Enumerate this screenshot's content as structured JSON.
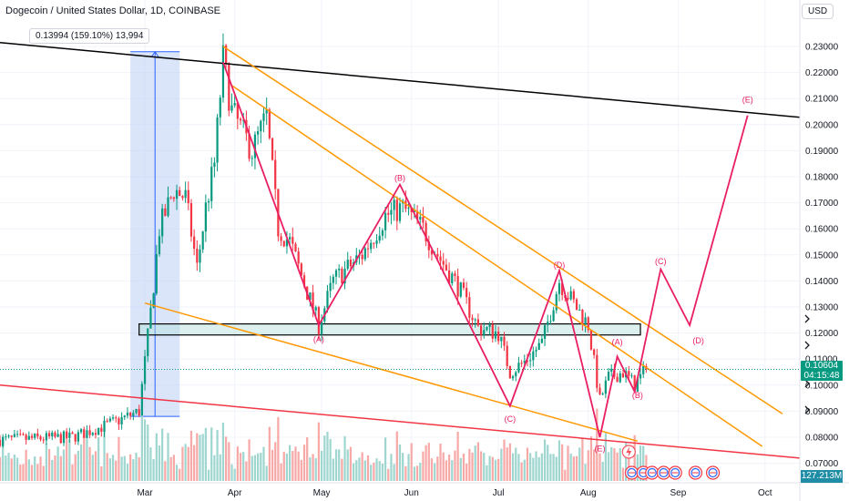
{
  "header": {
    "title": "Dogecoin / United States Dollar, 1D, COINBASE",
    "currency": "USD"
  },
  "measure": {
    "label": "0.13994 (159.10%) 13,994"
  },
  "price_tag": {
    "price": "0.10604",
    "countdown": "04:15:48"
  },
  "volume_tag": {
    "value": "127.213M"
  },
  "colors": {
    "up": "#089981",
    "down": "#f23645",
    "volume_up": "#9fd6cf",
    "volume_down": "#f7a9a7",
    "channel": "#ff9800",
    "resistance": "#000000",
    "support": "#f23645",
    "wave": "#e91e63",
    "zone_fill": "#b2dfdb",
    "measure_fill": "#bbcff5"
  },
  "chart_data": {
    "type": "candlestick",
    "symbol": "Dogecoin / United States Dollar",
    "interval": "1D",
    "exchange": "COINBASE",
    "ylim": [
      0.0675,
      0.2365
    ],
    "y_ticks": [
      "0.23000",
      "0.22000",
      "0.21000",
      "0.20000",
      "0.19000",
      "0.18000",
      "0.17000",
      "0.16000",
      "0.15000",
      "0.14000",
      "0.13000",
      "0.12000",
      "0.11000",
      "0.10000",
      "0.09000",
      "0.08000",
      "0.07000"
    ],
    "x_ticks": [
      {
        "label": "Mar",
        "date": "2024-03-01"
      },
      {
        "label": "Apr",
        "date": "2024-04-01"
      },
      {
        "label": "May",
        "date": "2024-05-01"
      },
      {
        "label": "Jun",
        "date": "2024-06-01"
      },
      {
        "label": "Jul",
        "date": "2024-07-01"
      },
      {
        "label": "Aug",
        "date": "2024-08-01"
      },
      {
        "label": "Sep",
        "date": "2024-09-01"
      },
      {
        "label": "Oct",
        "date": "2024-10-01"
      }
    ],
    "xlim": [
      "2024-01-11",
      "2024-10-13"
    ],
    "last_price": 0.10604,
    "price_path": [
      {
        "date": "2024-01-11",
        "price": 0.079
      },
      {
        "date": "2024-02-05",
        "price": 0.08
      },
      {
        "date": "2024-02-20",
        "price": 0.086
      },
      {
        "date": "2024-02-28",
        "price": 0.09
      },
      {
        "date": "2024-03-03",
        "price": 0.128
      },
      {
        "date": "2024-03-06",
        "price": 0.16
      },
      {
        "date": "2024-03-11",
        "price": 0.175
      },
      {
        "date": "2024-03-15",
        "price": 0.172
      },
      {
        "date": "2024-03-19",
        "price": 0.145
      },
      {
        "date": "2024-03-22",
        "price": 0.168
      },
      {
        "date": "2024-03-25",
        "price": 0.185
      },
      {
        "date": "2024-03-28",
        "price": 0.225
      },
      {
        "date": "2024-03-31",
        "price": 0.205
      },
      {
        "date": "2024-04-07",
        "price": 0.19
      },
      {
        "date": "2024-04-12",
        "price": 0.203
      },
      {
        "date": "2024-04-16",
        "price": 0.16
      },
      {
        "date": "2024-04-20",
        "price": 0.155
      },
      {
        "date": "2024-04-30",
        "price": 0.123
      },
      {
        "date": "2024-05-05",
        "price": 0.14
      },
      {
        "date": "2024-05-15",
        "price": 0.15
      },
      {
        "date": "2024-05-23",
        "price": 0.165
      },
      {
        "date": "2024-05-29",
        "price": 0.168
      },
      {
        "date": "2024-06-05",
        "price": 0.16
      },
      {
        "date": "2024-06-10",
        "price": 0.15
      },
      {
        "date": "2024-06-17",
        "price": 0.138
      },
      {
        "date": "2024-06-24",
        "price": 0.122
      },
      {
        "date": "2024-07-01",
        "price": 0.12
      },
      {
        "date": "2024-07-05",
        "price": 0.105
      },
      {
        "date": "2024-07-10",
        "price": 0.109
      },
      {
        "date": "2024-07-16",
        "price": 0.116
      },
      {
        "date": "2024-07-22",
        "price": 0.14
      },
      {
        "date": "2024-07-26",
        "price": 0.133
      },
      {
        "date": "2024-08-01",
        "price": 0.123
      },
      {
        "date": "2024-08-05",
        "price": 0.094
      },
      {
        "date": "2024-08-08",
        "price": 0.103
      },
      {
        "date": "2024-08-13",
        "price": 0.105
      },
      {
        "date": "2024-08-17",
        "price": 0.1
      },
      {
        "date": "2024-08-21",
        "price": 0.106
      }
    ],
    "resistance_line": [
      {
        "date": "2024-01-11",
        "price": 0.2315
      },
      {
        "date": "2024-10-13",
        "price": 0.2028
      }
    ],
    "support_line": [
      {
        "date": "2024-01-11",
        "price": 0.1
      },
      {
        "date": "2024-10-13",
        "price": 0.072
      }
    ],
    "channel_lines": [
      [
        {
          "date": "2024-03-28",
          "price": 0.23
        },
        {
          "date": "2024-10-07",
          "price": 0.089
        }
      ],
      [
        {
          "date": "2024-03-31",
          "price": 0.215
        },
        {
          "date": "2024-09-30",
          "price": 0.0765
        }
      ],
      [
        {
          "date": "2024-03-01",
          "price": 0.1315
        },
        {
          "date": "2024-08-18",
          "price": 0.0785
        }
      ]
    ],
    "zone": {
      "from": "2024-02-28",
      "to": "2024-08-19",
      "price_low": 0.121,
      "price_high": 0.1235
    },
    "measure_box": {
      "from": "2024-02-25",
      "to": "2024-03-13",
      "price_low": 0.088,
      "price_high": 0.228
    },
    "wave_labels": [
      {
        "text": "(B)",
        "date": "2024-05-28",
        "price": 0.1785
      },
      {
        "text": "(A)",
        "date": "2024-04-30",
        "price": 0.1165
      },
      {
        "text": "(C)",
        "date": "2024-07-05",
        "price": 0.086
      },
      {
        "text": "(D)",
        "date": "2024-07-22",
        "price": 0.145
      },
      {
        "text": "(E)",
        "date": "2024-08-05",
        "price": 0.0745
      },
      {
        "text": "(A)",
        "date": "2024-08-11",
        "price": 0.1155
      },
      {
        "text": "(B)",
        "date": "2024-08-18",
        "price": 0.095
      },
      {
        "text": "(C)",
        "date": "2024-08-26",
        "price": 0.1465
      },
      {
        "text": "(D)",
        "date": "2024-09-08",
        "price": 0.116
      },
      {
        "text": "(E)",
        "date": "2024-09-25",
        "price": 0.2085
      }
    ],
    "wave_path": [
      {
        "date": "2024-03-28",
        "price": 0.224
      },
      {
        "date": "2024-04-30",
        "price": 0.123
      },
      {
        "date": "2024-05-28",
        "price": 0.177
      },
      {
        "date": "2024-07-05",
        "price": 0.092
      },
      {
        "date": "2024-07-22",
        "price": 0.144
      },
      {
        "date": "2024-08-05",
        "price": 0.08
      },
      {
        "date": "2024-08-11",
        "price": 0.111
      },
      {
        "date": "2024-08-17",
        "price": 0.0975
      },
      {
        "date": "2024-08-26",
        "price": 0.1445
      },
      {
        "date": "2024-09-05",
        "price": 0.123
      },
      {
        "date": "2024-09-25",
        "price": 0.2035
      }
    ]
  }
}
